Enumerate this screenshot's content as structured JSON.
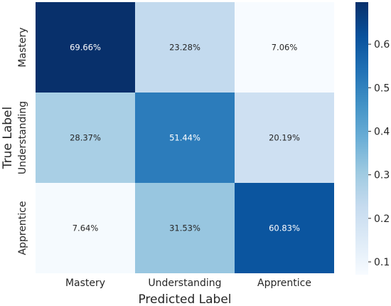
{
  "chart_data": {
    "type": "heatmap",
    "title": "",
    "xlabel": "Predicted Label",
    "ylabel": "True Label",
    "x_categories": [
      "Mastery",
      "Understanding",
      "Apprentice"
    ],
    "y_categories": [
      "Mastery",
      "Understanding",
      "Apprentice"
    ],
    "values": [
      [
        0.6966,
        0.2328,
        0.0706
      ],
      [
        0.2837,
        0.5144,
        0.2019
      ],
      [
        0.0764,
        0.3153,
        0.6083
      ]
    ],
    "cell_labels": [
      [
        "69.66%",
        "23.28%",
        "7.06%"
      ],
      [
        "28.37%",
        "51.44%",
        "20.19%"
      ],
      [
        "7.64%",
        "31.53%",
        "60.83%"
      ]
    ],
    "colorbar": {
      "range": [
        0.0706,
        0.6966
      ],
      "ticks": [
        0.1,
        0.2,
        0.3,
        0.4,
        0.5,
        0.6
      ],
      "tick_labels": [
        "0.1",
        "0.2",
        "0.3",
        "0.4",
        "0.5",
        "0.6"
      ],
      "colormap": "Blues"
    }
  }
}
